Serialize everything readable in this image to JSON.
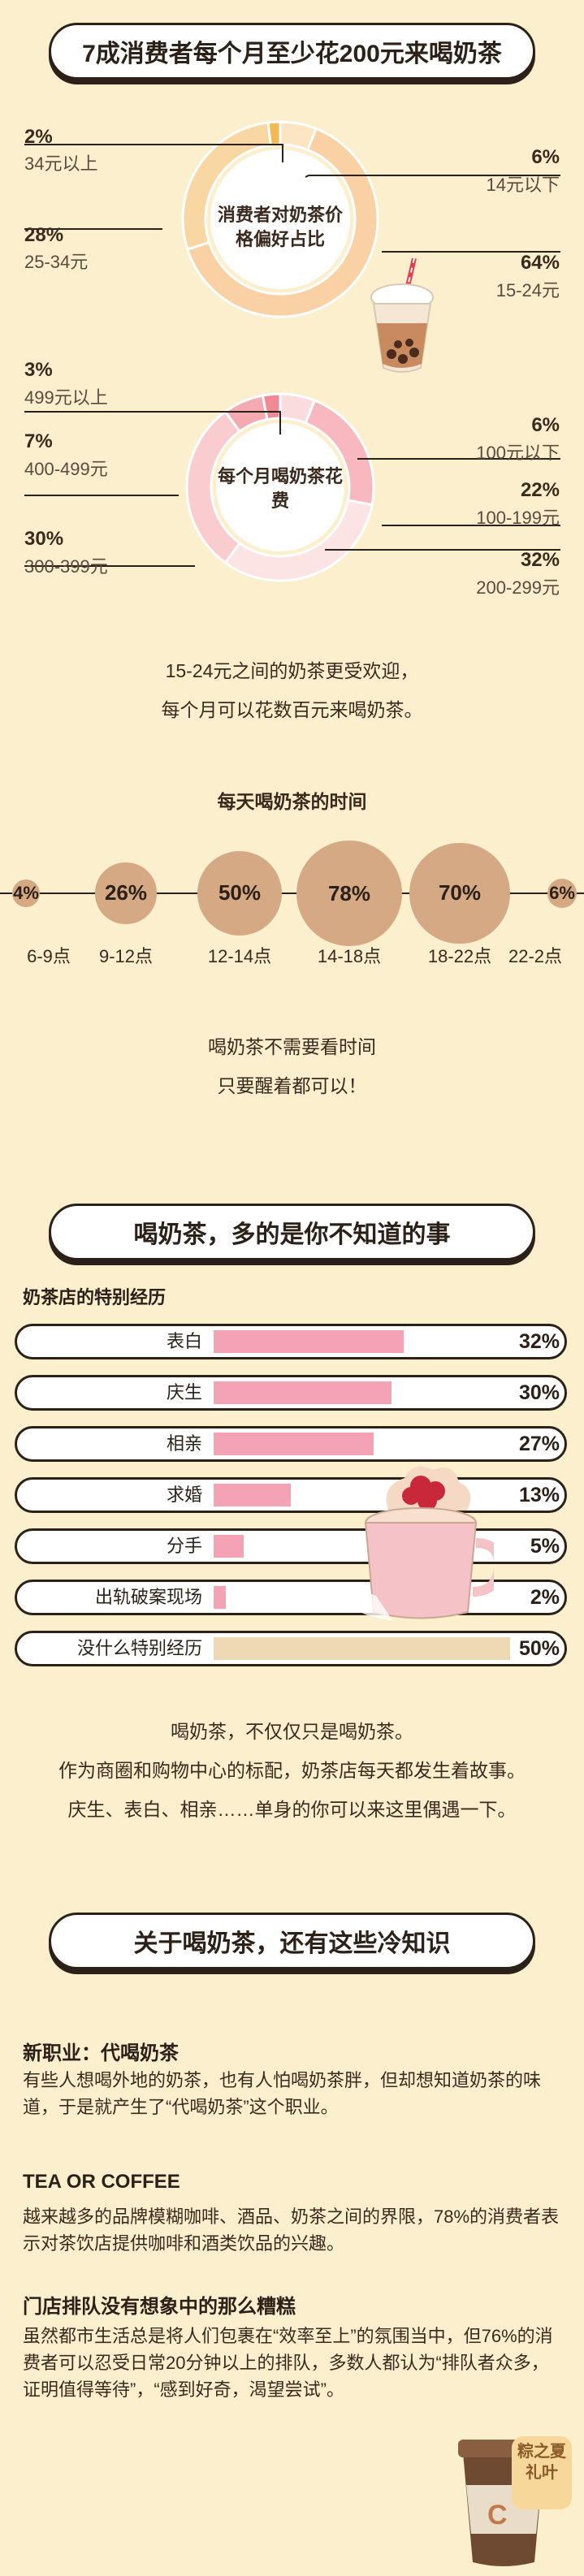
{
  "header": {
    "title": "7成消费者每个月至少花200元来喝奶茶"
  },
  "section2": {
    "title": "喝奶茶，多的是你不知道的事"
  },
  "section3": {
    "title": "关于喝奶茶，还有这些冷知识"
  },
  "chart_data": [
    {
      "type": "pie",
      "title": "消费者对奶茶价格偏好占比",
      "categories": [
        "34元以上",
        "25-34元",
        "14元以下",
        "15-24元"
      ],
      "values": [
        2,
        28,
        6,
        64
      ],
      "labels": [
        "2%",
        "28%",
        "6%",
        "64%"
      ],
      "colors": [
        "#f2b955",
        "#f9d7a3",
        "#fbe5c3",
        "#fad1a4"
      ]
    },
    {
      "type": "pie",
      "title": "每个月喝奶茶花费",
      "categories": [
        "499元以上",
        "400-499元",
        "300-399元",
        "100元以下",
        "100-199元",
        "200-299元"
      ],
      "values": [
        3,
        7,
        30,
        6,
        22,
        32
      ],
      "labels": [
        "3%",
        "7%",
        "30%",
        "6%",
        "22%",
        "32%"
      ],
      "colors": [
        "#f08b95",
        "#f5a9b1",
        "#f9cdd0",
        "#fbdcde",
        "#f7b9bf",
        "#fce4e5"
      ]
    },
    {
      "type": "scatter",
      "title": "每天喝奶茶的时间",
      "categories": [
        "6-9点",
        "9-12点",
        "12-14点",
        "14-18点",
        "18-22点",
        "22-2点"
      ],
      "values": [
        4,
        26,
        50,
        78,
        70,
        6
      ],
      "labels": [
        "4%",
        "26%",
        "50%",
        "78%",
        "70%",
        "6%"
      ]
    },
    {
      "type": "bar",
      "title": "奶茶店的特别经历",
      "categories": [
        "表白",
        "庆生",
        "相亲",
        "求婚",
        "分手",
        "出轨破案现场",
        "没什么特别经历"
      ],
      "values": [
        32,
        30,
        27,
        13,
        5,
        2,
        50
      ],
      "labels": [
        "32%",
        "30%",
        "27%",
        "13%",
        "5%",
        "2%",
        "50%"
      ]
    }
  ],
  "texts": {
    "p1a": "15-24元之间的奶茶更受欢迎，",
    "p1b": "每个月可以花数百元来喝奶茶。",
    "p2a": "喝奶茶不需要看时间",
    "p2b": "只要醒着都可以！",
    "p3a": "喝奶茶，不仅仅只是喝奶茶。",
    "p3b": "作为商圈和购物中心的标配，奶茶店每天都发生着故事。",
    "p3c": "庆生、表白、相亲……单身的你可以来这里偶遇一下。"
  },
  "facts": [
    {
      "title": "新职业：代喝奶茶",
      "body": "有些人想喝外地的奶茶，也有人怕喝奶茶胖，但却想知道奶茶的味道，于是就产生了“代喝奶茶”这个职业。"
    },
    {
      "title": "TEA OR COFFEE",
      "body": "越来越多的品牌模糊咖啡、酒品、奶茶之间的界限，78%的消费者表示对茶饮店提供咖啡和酒类饮品的兴趣。"
    },
    {
      "title": "门店排队没有想象中的那么糟糕",
      "body": "虽然都市生活总是将人们包裹在“效率至上”的氛围当中，但76%的消费者可以忍受日常20分钟以上的排队，多数人都认为“排队者众多，证明值得等待”，“感到好奇，渴望尝试”。"
    }
  ],
  "logo": {
    "text": "粽之夏礼叶"
  },
  "colors": {
    "background": "#fbefcd",
    "pink": "#f3a3b3",
    "tan": "#d6a985",
    "gray_bar": "#efd9b5"
  }
}
